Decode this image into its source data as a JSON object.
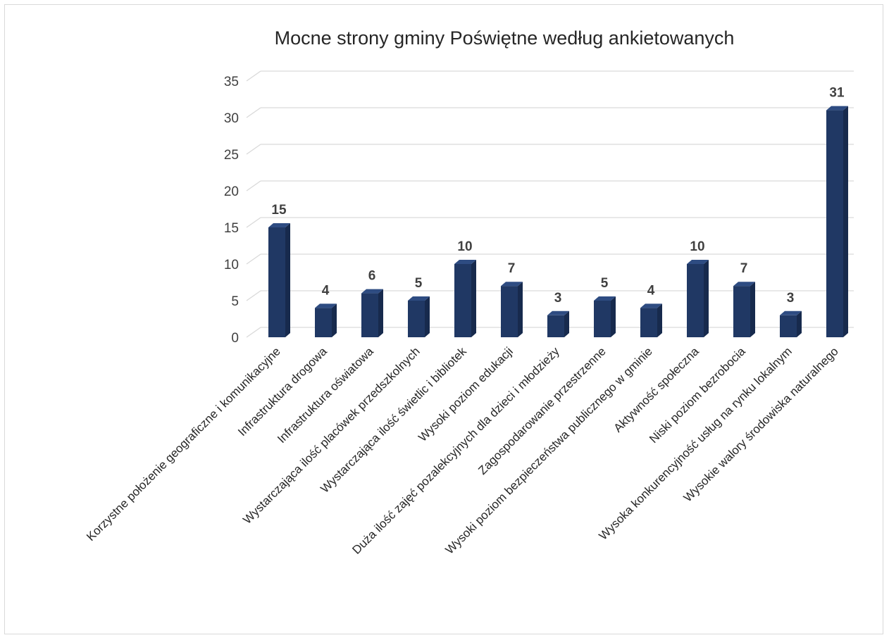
{
  "chart_data": {
    "type": "bar",
    "title": "Mocne strony gminy Poświętne według ankietowanych",
    "xlabel": "",
    "ylabel": "",
    "ylim": [
      0,
      35
    ],
    "yticks": [
      0,
      5,
      10,
      15,
      20,
      25,
      30,
      35
    ],
    "grid": true,
    "legend": "none",
    "categories": [
      "Korzystne położenie geograficzne i komunikacyjne",
      "Infrastruktura drogowa",
      "Infrastruktura oświatowa",
      "Wystarczająca ilość placówek przedszkolnych",
      "Wystarczająca ilość świetlic i bibliotek",
      "Wysoki poziom edukacji",
      "Duża ilość zajęć pozalekcyjnych dla dzieci i młodzieży",
      "Zagospodarowanie przestrzenne",
      "Wysoki poziom bezpieczeństwa publicznego w gminie",
      "Aktywność społeczna",
      "Niski poziom bezrobocia",
      "Wysoka konkurencyjność usług na rynku lokalnym",
      "Wysokie walory środowiska naturalnego"
    ],
    "values": [
      15,
      4,
      6,
      5,
      10,
      7,
      3,
      5,
      4,
      10,
      7,
      3,
      31
    ],
    "colors": {
      "bar_front": "#203864",
      "bar_side": "#172a4d",
      "bar_top": "#2e4c82",
      "gridline": "#d9d9d9"
    }
  }
}
